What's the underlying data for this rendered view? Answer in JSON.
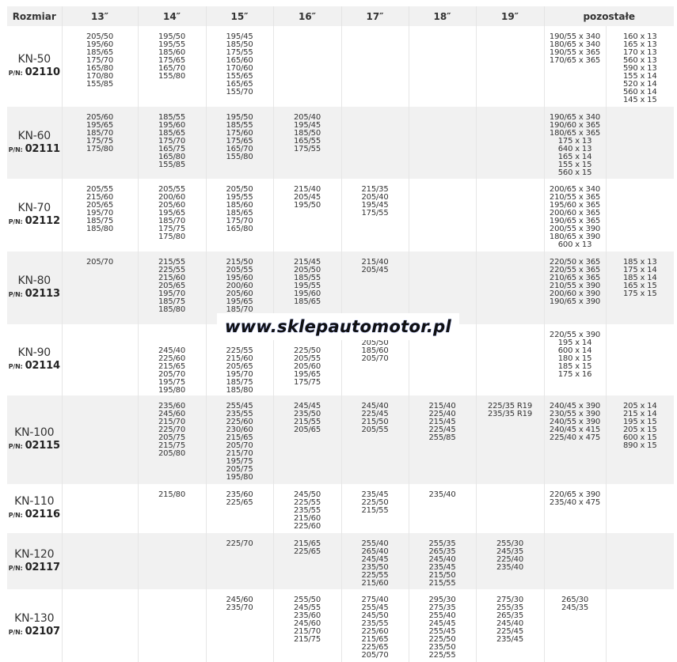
{
  "header": {
    "size_label": "Rozmiar",
    "columns": [
      "13″",
      "14″",
      "15″",
      "16″",
      "17″",
      "18″",
      "19″"
    ],
    "other_label": "pozostałe"
  },
  "pn_label": "P/N:",
  "rows": [
    {
      "name": "KN-50",
      "pn": "02110",
      "cells": [
        [
          "205/50",
          "195/60",
          "185/65",
          "175/70",
          "165/80",
          "170/80",
          "155/85"
        ],
        [
          "195/50",
          "195/55",
          "185/60",
          "175/65",
          "165/70",
          "155/80"
        ],
        [
          "195/45",
          "185/50",
          "175/55",
          "165/60",
          "170/60",
          "155/65",
          "165/65",
          "155/70"
        ],
        [],
        [],
        [],
        [],
        [
          "190/55 x 340",
          "180/65 x 340",
          "190/55 x 365",
          "170/65 x 365"
        ],
        [
          "160 x 13",
          "165 x 13",
          "170 x 13",
          "560 x 13",
          "590 x 13",
          "155 x 14",
          "520 x 14",
          "560 x 14",
          "145 x 15"
        ]
      ]
    },
    {
      "name": "KN-60",
      "pn": "02111",
      "cells": [
        [
          "205/60",
          "195/65",
          "185/70",
          "175/75",
          "175/80"
        ],
        [
          "185/55",
          "195/60",
          "185/65",
          "175/70",
          "165/75",
          "165/80",
          "155/85"
        ],
        [
          "195/50",
          "185/55",
          "175/60",
          "175/65",
          "165/70",
          "155/80"
        ],
        [
          "205/40",
          "195/45",
          "185/50",
          "165/55",
          "175/55"
        ],
        [],
        [],
        [],
        [
          "190/65 x 340",
          "190/60 x 365",
          "180/65 x 365",
          "175 x 13",
          "640 x 13",
          "165 x 14",
          "155 x 15",
          "560 x 15"
        ],
        []
      ]
    },
    {
      "name": "KN-70",
      "pn": "02112",
      "cells": [
        [
          "205/55",
          "215/60",
          "205/65",
          "195/70",
          "185/75",
          "185/80"
        ],
        [
          "205/55",
          "200/60",
          "205/60",
          "195/65",
          "185/70",
          "175/75",
          "175/80"
        ],
        [
          "205/50",
          "195/55",
          "185/60",
          "185/65",
          "175/70",
          "165/80"
        ],
        [
          "215/40",
          "205/45",
          "195/50"
        ],
        [
          "215/35",
          "205/40",
          "195/45",
          "175/55"
        ],
        [],
        [],
        [
          "200/65 x 340",
          "210/55 x 365",
          "195/60 x 365",
          "200/60 x 365",
          "190/65 x 365",
          "200/55 x 390",
          "180/65 x 390",
          "600 x 13"
        ],
        []
      ]
    },
    {
      "name": "KN-80",
      "pn": "02113",
      "cells": [
        [
          "205/70"
        ],
        [
          "215/55",
          "225/55",
          "215/60",
          "205/65",
          "195/70",
          "185/75",
          "185/80"
        ],
        [
          "215/50",
          "205/55",
          "195/60",
          "200/60",
          "205/60",
          "195/65",
          "185/70"
        ],
        [
          "215/45",
          "205/50",
          "185/55",
          "195/55",
          "195/60",
          "185/65"
        ],
        [
          "215/40",
          "205/45"
        ],
        [],
        [],
        [
          "220/50 x 365",
          "220/55 x 365",
          "210/65 x 365",
          "210/55 x 390",
          "200/60 x 390",
          "190/65 x 390"
        ],
        [
          "185 x 13",
          "175 x 14",
          "185 x 14",
          "165 x 15",
          "175 x 15"
        ]
      ]
    },
    {
      "name": "KN-90",
      "pn": "02114",
      "cells": [
        [],
        [
          "245/40",
          "225/60",
          "215/65",
          "205/70",
          "195/75",
          "195/80"
        ],
        [
          "225/55",
          "215/60",
          "205/65",
          "195/70",
          "185/75",
          "185/80"
        ],
        [
          "225/50",
          "205/55",
          "205/60",
          "195/65",
          "175/75"
        ],
        [
          "215/45",
          "205/50",
          "185/60",
          "205/70"
        ],
        [],
        [],
        [
          "220/55 x 390",
          "195 x 14",
          "600 x 14",
          "180 x 15",
          "185 x 15",
          "175 x 16"
        ],
        []
      ]
    },
    {
      "name": "KN-100",
      "pn": "02115",
      "cells": [
        [],
        [
          "235/60",
          "245/60",
          "215/70",
          "225/70",
          "205/75",
          "215/75",
          "205/80"
        ],
        [
          "255/45",
          "235/55",
          "225/60",
          "230/60",
          "215/65",
          "205/70",
          "215/70",
          "195/75",
          "205/75",
          "195/80"
        ],
        [
          "245/45",
          "235/50",
          "215/55",
          "205/65"
        ],
        [
          "245/40",
          "225/45",
          "215/50",
          "205/55"
        ],
        [
          "215/40",
          "225/40",
          "215/45",
          "225/45",
          "255/85"
        ],
        [
          "225/35 R19",
          "235/35 R19"
        ],
        [
          "240/45 x 390",
          "230/55 x 390",
          "240/55 x 390",
          "240/45 x 415",
          "225/40 x 475"
        ],
        [
          "205 x 14",
          "215 x 14",
          "195 x 15",
          "205 x 15",
          "600 x 15",
          "890 x 15"
        ]
      ]
    },
    {
      "name": "KN-110",
      "pn": "02116",
      "cells": [
        [],
        [
          "215/80"
        ],
        [
          "235/60",
          "225/65"
        ],
        [
          "245/50",
          "225/55",
          "235/55",
          "215/60",
          "225/60"
        ],
        [
          "235/45",
          "225/50",
          "215/55"
        ],
        [
          "235/40"
        ],
        [],
        [
          "220/65 x 390",
          "235/40 x 475"
        ],
        []
      ]
    },
    {
      "name": "KN-120",
      "pn": "02117",
      "cells": [
        [],
        [],
        [
          "225/70"
        ],
        [
          "215/65",
          "225/65"
        ],
        [
          "255/40",
          "265/40",
          "245/45",
          "235/50",
          "225/55",
          "215/60"
        ],
        [
          "255/35",
          "265/35",
          "245/40",
          "235/45",
          "215/50",
          "215/55"
        ],
        [
          "255/30",
          "245/35",
          "225/40",
          "235/40"
        ],
        [],
        []
      ]
    },
    {
      "name": "KN-130",
      "pn": "02107",
      "cells": [
        [],
        [],
        [
          "245/60",
          "235/70"
        ],
        [
          "255/50",
          "245/55",
          "235/60",
          "245/60",
          "215/70",
          "215/75"
        ],
        [
          "275/40",
          "255/45",
          "245/50",
          "235/55",
          "225/60",
          "215/65",
          "225/65",
          "205/70"
        ],
        [
          "295/30",
          "275/35",
          "255/40",
          "245/45",
          "255/45",
          "225/50",
          "235/50",
          "225/55"
        ],
        [
          "275/30",
          "255/35",
          "265/35",
          "245/40",
          "225/45",
          "235/45"
        ],
        [
          "265/30",
          "245/35"
        ],
        []
      ]
    }
  ],
  "watermark": "www.sklepautomotor.pl"
}
